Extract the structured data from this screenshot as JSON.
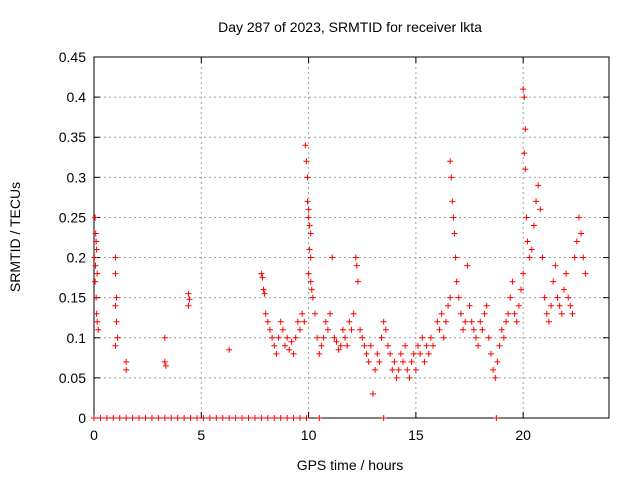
{
  "chart_data": {
    "type": "scatter",
    "title": "Day 287 of 2023, SRMTID for receiver lkta",
    "xlabel": "GPS time / hours",
    "ylabel": "SRMTID / TECUs",
    "xlim": [
      0,
      24
    ],
    "ylim": [
      0,
      0.45
    ],
    "xticks": [
      0,
      5,
      10,
      15,
      20
    ],
    "xtick_labels": [
      "0",
      "5",
      "10",
      "15",
      "20"
    ],
    "yticks": [
      0,
      0.05,
      0.1,
      0.15,
      0.2,
      0.25,
      0.3,
      0.35,
      0.4,
      0.45
    ],
    "ytick_labels": [
      "0",
      "0.05",
      "0.1",
      "0.15",
      "0.2",
      "0.25",
      "0.3",
      "0.35",
      "0.4",
      "0.45"
    ],
    "grid": true,
    "marker": "+",
    "series": [
      {
        "name": "SRMTID",
        "color": "#ff0000",
        "points": [
          [
            0.05,
            0.25
          ],
          [
            0.08,
            0.23
          ],
          [
            0.1,
            0.22
          ],
          [
            0.12,
            0.21
          ],
          [
            0.15,
            0.18
          ],
          [
            0.05,
            0.17
          ],
          [
            0.1,
            0.15
          ],
          [
            0.12,
            0.13
          ],
          [
            0.15,
            0.12
          ],
          [
            0.2,
            0.11
          ],
          [
            0.02,
            0.2
          ],
          [
            0.07,
            0.19
          ],
          [
            1.0,
            0.2
          ],
          [
            1.0,
            0.18
          ],
          [
            1.05,
            0.15
          ],
          [
            1.0,
            0.14
          ],
          [
            1.05,
            0.12
          ],
          [
            1.1,
            0.1
          ],
          [
            1.0,
            0.09
          ],
          [
            1.5,
            0.07
          ],
          [
            1.5,
            0.06
          ],
          [
            3.3,
            0.1
          ],
          [
            3.3,
            0.07
          ],
          [
            3.35,
            0.065
          ],
          [
            4.4,
            0.155
          ],
          [
            4.45,
            0.148
          ],
          [
            4.4,
            0.14
          ],
          [
            6.3,
            0.085
          ],
          [
            7.8,
            0.18
          ],
          [
            7.85,
            0.175
          ],
          [
            7.9,
            0.16
          ],
          [
            7.95,
            0.155
          ],
          [
            8.0,
            0.13
          ],
          [
            8.1,
            0.12
          ],
          [
            8.2,
            0.11
          ],
          [
            8.3,
            0.1
          ],
          [
            8.4,
            0.09
          ],
          [
            8.5,
            0.08
          ],
          [
            8.6,
            0.1
          ],
          [
            8.7,
            0.12
          ],
          [
            8.8,
            0.11
          ],
          [
            8.9,
            0.09
          ],
          [
            9.0,
            0.1
          ],
          [
            9.1,
            0.085
          ],
          [
            9.2,
            0.095
          ],
          [
            9.3,
            0.08
          ],
          [
            9.4,
            0.1
          ],
          [
            9.5,
            0.12
          ],
          [
            9.6,
            0.11
          ],
          [
            9.7,
            0.13
          ],
          [
            9.8,
            0.12
          ],
          [
            9.85,
            0.34
          ],
          [
            9.9,
            0.32
          ],
          [
            9.95,
            0.3
          ],
          [
            9.95,
            0.27
          ],
          [
            10.0,
            0.26
          ],
          [
            10.0,
            0.25
          ],
          [
            10.05,
            0.24
          ],
          [
            10.1,
            0.23
          ],
          [
            10.05,
            0.21
          ],
          [
            10.1,
            0.2
          ],
          [
            10.0,
            0.18
          ],
          [
            10.1,
            0.17
          ],
          [
            10.15,
            0.16
          ],
          [
            10.2,
            0.15
          ],
          [
            10.3,
            0.13
          ],
          [
            10.4,
            0.1
          ],
          [
            10.5,
            0.08
          ],
          [
            10.6,
            0.09
          ],
          [
            10.7,
            0.1
          ],
          [
            10.8,
            0.12
          ],
          [
            10.9,
            0.11
          ],
          [
            11.0,
            0.13
          ],
          [
            11.1,
            0.2
          ],
          [
            11.2,
            0.1
          ],
          [
            11.3,
            0.095
          ],
          [
            11.4,
            0.085
          ],
          [
            11.5,
            0.09
          ],
          [
            11.6,
            0.11
          ],
          [
            11.7,
            0.1
          ],
          [
            11.8,
            0.09
          ],
          [
            11.9,
            0.12
          ],
          [
            12.0,
            0.11
          ],
          [
            12.1,
            0.13
          ],
          [
            12.2,
            0.2
          ],
          [
            12.25,
            0.19
          ],
          [
            12.3,
            0.17
          ],
          [
            12.4,
            0.11
          ],
          [
            12.5,
            0.1
          ],
          [
            12.6,
            0.09
          ],
          [
            12.7,
            0.08
          ],
          [
            12.8,
            0.07
          ],
          [
            12.9,
            0.09
          ],
          [
            13.0,
            0.03
          ],
          [
            13.1,
            0.06
          ],
          [
            13.2,
            0.08
          ],
          [
            13.3,
            0.07
          ],
          [
            13.4,
            0.1
          ],
          [
            13.5,
            0.12
          ],
          [
            13.6,
            0.11
          ],
          [
            13.7,
            0.09
          ],
          [
            13.8,
            0.08
          ],
          [
            13.9,
            0.06
          ],
          [
            14.0,
            0.07
          ],
          [
            14.1,
            0.05
          ],
          [
            14.2,
            0.06
          ],
          [
            14.3,
            0.08
          ],
          [
            14.4,
            0.07
          ],
          [
            14.5,
            0.09
          ],
          [
            14.6,
            0.06
          ],
          [
            14.7,
            0.05
          ],
          [
            14.8,
            0.07
          ],
          [
            14.9,
            0.08
          ],
          [
            15.0,
            0.06
          ],
          [
            15.1,
            0.09
          ],
          [
            15.2,
            0.08
          ],
          [
            15.3,
            0.1
          ],
          [
            15.4,
            0.07
          ],
          [
            15.5,
            0.09
          ],
          [
            15.6,
            0.08
          ],
          [
            15.7,
            0.1
          ],
          [
            15.8,
            0.09
          ],
          [
            16.0,
            0.12
          ],
          [
            16.1,
            0.11
          ],
          [
            16.2,
            0.13
          ],
          [
            16.3,
            0.1
          ],
          [
            16.4,
            0.12
          ],
          [
            16.5,
            0.14
          ],
          [
            16.6,
            0.15
          ],
          [
            16.6,
            0.32
          ],
          [
            16.65,
            0.3
          ],
          [
            16.7,
            0.27
          ],
          [
            16.75,
            0.25
          ],
          [
            16.8,
            0.23
          ],
          [
            16.85,
            0.2
          ],
          [
            16.9,
            0.17
          ],
          [
            17.0,
            0.15
          ],
          [
            17.1,
            0.13
          ],
          [
            17.2,
            0.11
          ],
          [
            17.3,
            0.12
          ],
          [
            17.4,
            0.19
          ],
          [
            17.5,
            0.14
          ],
          [
            17.6,
            0.12
          ],
          [
            17.7,
            0.11
          ],
          [
            17.8,
            0.1
          ],
          [
            17.9,
            0.09
          ],
          [
            18.0,
            0.12
          ],
          [
            18.1,
            0.11
          ],
          [
            18.2,
            0.13
          ],
          [
            18.3,
            0.14
          ],
          [
            18.4,
            0.1
          ],
          [
            18.5,
            0.08
          ],
          [
            18.6,
            0.06
          ],
          [
            18.7,
            0.05
          ],
          [
            18.8,
            0.07
          ],
          [
            18.9,
            0.09
          ],
          [
            19.0,
            0.11
          ],
          [
            19.1,
            0.1
          ],
          [
            19.2,
            0.12
          ],
          [
            19.3,
            0.13
          ],
          [
            19.4,
            0.15
          ],
          [
            19.5,
            0.17
          ],
          [
            19.6,
            0.13
          ],
          [
            19.7,
            0.12
          ],
          [
            19.8,
            0.14
          ],
          [
            19.9,
            0.16
          ],
          [
            20.0,
            0.18
          ],
          [
            20.0,
            0.41
          ],
          [
            20.05,
            0.4
          ],
          [
            20.1,
            0.36
          ],
          [
            20.05,
            0.33
          ],
          [
            20.1,
            0.31
          ],
          [
            20.15,
            0.25
          ],
          [
            20.2,
            0.22
          ],
          [
            20.3,
            0.2
          ],
          [
            20.4,
            0.21
          ],
          [
            20.5,
            0.24
          ],
          [
            20.6,
            0.27
          ],
          [
            20.7,
            0.29
          ],
          [
            20.8,
            0.26
          ],
          [
            20.9,
            0.2
          ],
          [
            21.0,
            0.15
          ],
          [
            21.1,
            0.13
          ],
          [
            21.2,
            0.12
          ],
          [
            21.3,
            0.14
          ],
          [
            21.4,
            0.17
          ],
          [
            21.5,
            0.19
          ],
          [
            21.6,
            0.15
          ],
          [
            21.7,
            0.14
          ],
          [
            21.8,
            0.13
          ],
          [
            21.9,
            0.16
          ],
          [
            22.0,
            0.18
          ],
          [
            22.1,
            0.15
          ],
          [
            22.2,
            0.14
          ],
          [
            22.3,
            0.13
          ],
          [
            22.4,
            0.2
          ],
          [
            22.5,
            0.22
          ],
          [
            22.6,
            0.25
          ],
          [
            22.7,
            0.23
          ],
          [
            22.8,
            0.2
          ],
          [
            22.9,
            0.18
          ],
          [
            0.0,
            0
          ],
          [
            0.3,
            0
          ],
          [
            0.6,
            0
          ],
          [
            0.9,
            0
          ],
          [
            1.2,
            0
          ],
          [
            1.5,
            0
          ],
          [
            1.8,
            0
          ],
          [
            2.1,
            0
          ],
          [
            2.4,
            0
          ],
          [
            2.7,
            0
          ],
          [
            3.0,
            0
          ],
          [
            3.3,
            0
          ],
          [
            3.6,
            0
          ],
          [
            3.9,
            0
          ],
          [
            4.2,
            0
          ],
          [
            4.5,
            0
          ],
          [
            4.8,
            0
          ],
          [
            5.1,
            0
          ],
          [
            5.4,
            0
          ],
          [
            5.7,
            0
          ],
          [
            6.0,
            0
          ],
          [
            6.3,
            0
          ],
          [
            6.6,
            0
          ],
          [
            6.9,
            0
          ],
          [
            7.2,
            0
          ],
          [
            7.5,
            0
          ],
          [
            7.8,
            0
          ],
          [
            8.1,
            0
          ],
          [
            8.4,
            0
          ],
          [
            8.7,
            0
          ],
          [
            9.0,
            0
          ],
          [
            9.3,
            0
          ],
          [
            9.6,
            0
          ],
          [
            9.9,
            0
          ],
          [
            10.5,
            0
          ],
          [
            13.5,
            0
          ],
          [
            18.75,
            0
          ]
        ]
      }
    ]
  }
}
